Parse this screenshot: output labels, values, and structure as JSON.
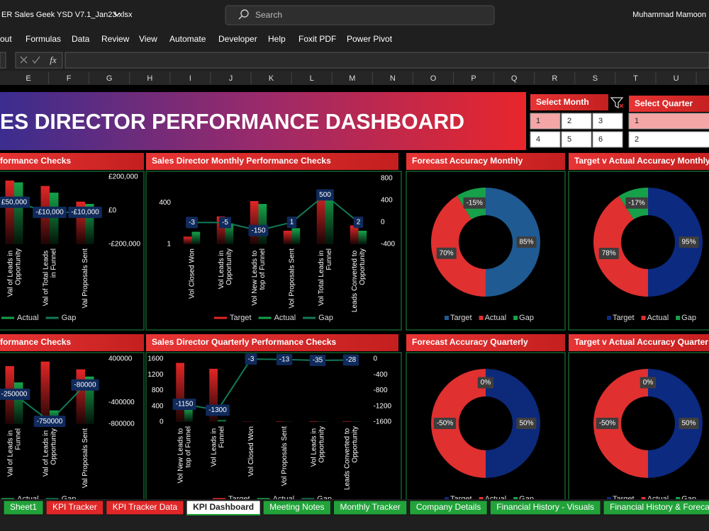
{
  "window": {
    "file_name": "ER Sales Geek YSD V7.1_Jan23.xlsx",
    "search": "Search",
    "user": "Muhammad Mamoon"
  },
  "menu": [
    "out",
    "Formulas",
    "Data",
    "Review",
    "View",
    "Automate",
    "Developer",
    "Help",
    "Foxit PDF",
    "Power Pivot"
  ],
  "formula_bar": {
    "function_label": "fx"
  },
  "columns": [
    "E",
    "F",
    "G",
    "H",
    "I",
    "J",
    "K",
    "L",
    "M",
    "N",
    "O",
    "P",
    "Q",
    "R",
    "S",
    "T",
    "U"
  ],
  "banner": {
    "title": "ES DIRECTOR PERFORMANCE DASHBOARD"
  },
  "month_slicer": {
    "title": "Select Month",
    "items": [
      1,
      2,
      3,
      4,
      5,
      6
    ],
    "selected_index": 0
  },
  "quarter_slicer": {
    "title": "Select Quarter",
    "items": [
      1,
      2
    ],
    "selected_index": 0
  },
  "chart_data": [
    {
      "type": "combo",
      "title": "formance Checks",
      "categories": [
        "Val of Leads in Opportunity",
        "Val of Total Leads in Funnel",
        "Val Proposals Sent"
      ],
      "series": [
        {
          "color": "#e32626",
          "values": [
            284000,
            260000,
            190000
          ]
        },
        {
          "name": "Actual",
          "color": "#16a34a",
          "values": [
            276000,
            230000,
            180000
          ]
        },
        {
          "name": "Gap",
          "color": "#127a5a",
          "axis": "y2",
          "values": [
            50000,
            -10000,
            -10000
          ],
          "value_labels": [
            "£50,000",
            "-£10,000",
            "-£10,000"
          ]
        }
      ],
      "ylim": [
        0,
        300000
      ],
      "y2lim": [
        -200000,
        200000
      ],
      "y2ticks": [
        {
          "value": 200000,
          "label": "£200,000"
        },
        {
          "value": 0,
          "label": "£0"
        },
        {
          "value": -200000,
          "label": "-£200,000"
        }
      ]
    },
    {
      "type": "combo",
      "title": "Sales Director Monthly Performance Checks",
      "categories": [
        "Vol Closed Won",
        "Vol Leads in Opportunity",
        "Vol New Leads to top of Funnel",
        "Vol Proposals Sent",
        "Vol Total Leads in Funnel",
        "Leads Converted to Opportunity"
      ],
      "series": [
        {
          "name": "Target",
          "color": "#e32626",
          "values": [
            3,
            55,
            500,
            7,
            2250,
            15
          ]
        },
        {
          "name": "Actual",
          "color": "#16a34a",
          "values": [
            6,
            20,
            330,
            10,
            1500,
            7
          ]
        },
        {
          "name": "Gap",
          "color": "#127a5a",
          "axis": "y2",
          "values": [
            -3,
            -5,
            -150,
            1,
            500,
            2
          ]
        }
      ],
      "log_scale": true,
      "ylim": [
        1,
        13000
      ],
      "yticks": [
        1,
        400
      ],
      "y2lim": [
        -400,
        800
      ],
      "y2ticks": [
        800,
        400,
        0,
        -400
      ]
    },
    {
      "type": "donut",
      "title": "Forecast Accuracy Monthly",
      "categories": [
        "Target",
        "Actual",
        "Gap"
      ],
      "values": [
        85,
        70,
        -15
      ],
      "value_labels": [
        "85%",
        "70%",
        "-15%"
      ],
      "colors": [
        "#1f5a92",
        "#e03030",
        "#17a04a"
      ]
    },
    {
      "type": "donut",
      "title": "Target v Actual Accuracy Monthly",
      "categories": [
        "Target",
        "Actual",
        "Gap"
      ],
      "values": [
        95,
        78,
        -17
      ],
      "value_labels": [
        "95%",
        "78%",
        "-17%"
      ],
      "colors": [
        "#0b2a80",
        "#e03030",
        "#17a04a"
      ]
    },
    {
      "type": "combo",
      "title": "formance Checks",
      "categories": [
        "Val of Leads in Funnel",
        "Val of Leads in Opportunity",
        "Val Proposals Sent"
      ],
      "series": [
        {
          "color": "#e32626",
          "values": [
            890000,
            960000,
            840000
          ]
        },
        {
          "name": "Actual",
          "color": "#16a34a",
          "values": [
            640000,
            210000,
            730000
          ]
        },
        {
          "name": "Gap",
          "color": "#127a5a",
          "axis": "y2",
          "values": [
            -250000,
            -750000,
            -80000
          ]
        }
      ],
      "ylim": [
        0,
        1000000
      ],
      "y2lim": [
        -800000,
        400000
      ],
      "y2ticks": [
        400000,
        -400000,
        -800000
      ]
    },
    {
      "type": "combo",
      "title": "Sales Director Quarterly Performance Checks",
      "categories": [
        "Vol New Leads to top of Funnel",
        "Vol Leads in Funnel",
        "Vol Closed Won",
        "Vol Proposals Sent",
        "Vol Leads in Opportunity",
        "Leads Converted to Opportunity"
      ],
      "series": [
        {
          "name": "Target",
          "color": "#e32626",
          "values": [
            1500,
            1350,
            5,
            15,
            20,
            20
          ]
        },
        {
          "name": "Actual",
          "color": "#16a34a",
          "values": [
            350,
            50,
            2,
            3,
            5,
            5
          ]
        },
        {
          "name": "Gap",
          "color": "#127a5a",
          "axis": "y2",
          "values": [
            -1150,
            -1300,
            -3,
            -13,
            -35,
            -28
          ]
        }
      ],
      "ylim": [
        0,
        1600
      ],
      "yticks": [
        1600,
        1200,
        800,
        400,
        0
      ],
      "y2lim": [
        -1600,
        0
      ],
      "y2ticks": [
        0,
        -400,
        -800,
        -1200,
        -1600
      ]
    },
    {
      "type": "donut",
      "title": "Forecast Accuracy Quarterly",
      "categories": [
        "Target",
        "Actual",
        "Gap"
      ],
      "values": [
        50,
        -50,
        0
      ],
      "value_labels": [
        "50%",
        "-50%",
        "0%"
      ],
      "colors": [
        "#0d2a7a",
        "#e03030",
        "#17a04a"
      ]
    },
    {
      "type": "donut",
      "title": "Target v Actual Accuracy Quarter",
      "categories": [
        "Target",
        "Actual",
        "Gap"
      ],
      "values": [
        50,
        -50,
        0
      ],
      "value_labels": [
        "50%",
        "-50%",
        "0%"
      ],
      "colors": [
        "#0b2a80",
        "#e03030",
        "#17a04a"
      ]
    }
  ],
  "sheet_tabs": {
    "items": [
      "Sheet1",
      "KPI Tracker",
      "KPI Tracker Data",
      "KPI Dashboard",
      "Meeting Notes",
      "Monthly Tracker",
      "Company Details",
      "Financial History - Visuals",
      "Financial History & Forecast"
    ],
    "colors": [
      "#22a33a",
      "#e02727",
      "#e02727",
      "#ffffff",
      "#22a33a",
      "#22a33a",
      "#22a33a",
      "#22a33a",
      "#22a33a"
    ],
    "active_index": 3
  }
}
